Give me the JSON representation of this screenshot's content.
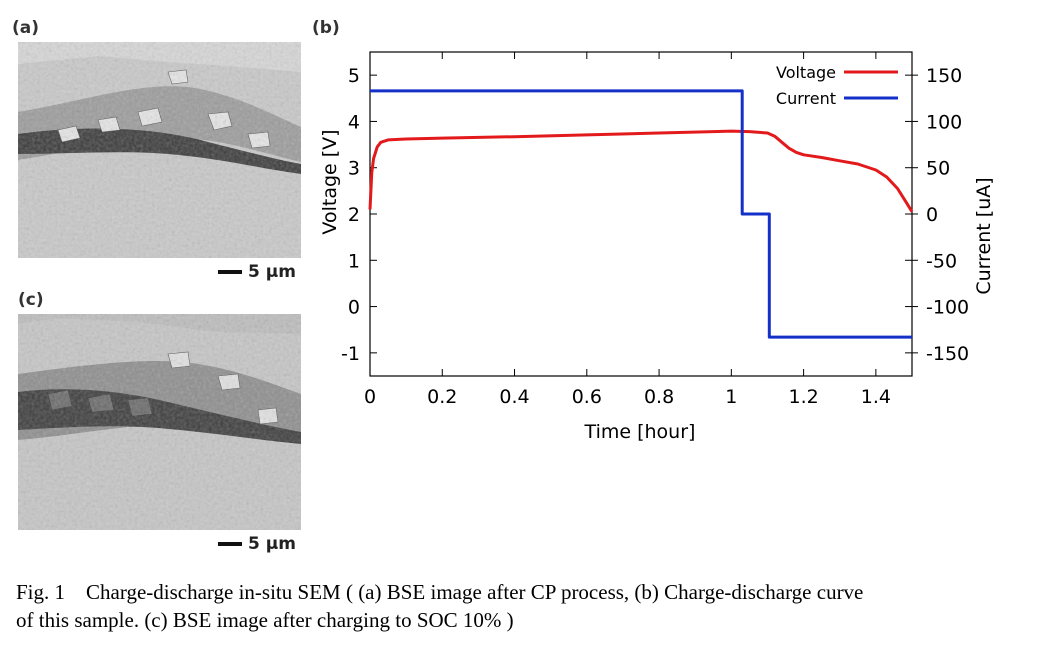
{
  "panels": {
    "a_label": "(a)",
    "b_label": "(b)",
    "c_label": "(c)",
    "scalebar_a": "5 µm",
    "scalebar_c": "5 µm"
  },
  "chart_data": {
    "type": "line",
    "xlabel": "Time [hour]",
    "ylabel": "Voltage [V]",
    "y2label": "Current [uA]",
    "xlim": [
      0,
      1.5
    ],
    "ylim": [
      -1.5,
      5.5
    ],
    "y2lim": [
      -175,
      175
    ],
    "xticks": [
      "0",
      "0.2",
      "0.4",
      "0.6",
      "0.8",
      "1",
      "1.2",
      "1.4"
    ],
    "yticks": [
      "5",
      "4",
      "3",
      "2",
      "1",
      "0",
      "-1"
    ],
    "y2ticks": [
      "150",
      "100",
      "50",
      "0",
      "-50",
      "-100",
      "-150"
    ],
    "legend_position": "top-right",
    "series": [
      {
        "name": "Voltage",
        "axis": "left",
        "color": "#e31a1c",
        "x": [
          0,
          0.005,
          0.01,
          0.02,
          0.03,
          0.05,
          0.1,
          0.2,
          0.4,
          0.6,
          0.8,
          0.95,
          1.0,
          1.05,
          1.1,
          1.12,
          1.14,
          1.16,
          1.18,
          1.2,
          1.25,
          1.3,
          1.35,
          1.4,
          1.43,
          1.46,
          1.48,
          1.5
        ],
        "y": [
          2.1,
          2.9,
          3.2,
          3.45,
          3.55,
          3.6,
          3.62,
          3.64,
          3.67,
          3.71,
          3.75,
          3.78,
          3.79,
          3.78,
          3.75,
          3.68,
          3.55,
          3.42,
          3.33,
          3.28,
          3.22,
          3.15,
          3.08,
          2.95,
          2.8,
          2.55,
          2.3,
          2.05
        ]
      },
      {
        "name": "Current",
        "axis": "right",
        "color": "#1530c8",
        "x": [
          0,
          1.03,
          1.03,
          1.105,
          1.105,
          1.5
        ],
        "y": [
          133,
          133,
          0,
          0,
          -133,
          -133
        ]
      }
    ]
  },
  "caption": {
    "line1": "Fig. 1    Charge-discharge in-situ SEM ( (a) BSE image after CP process, (b) Charge-discharge curve",
    "line2": "of this sample. (c) BSE image after charging to SOC 10% )"
  }
}
